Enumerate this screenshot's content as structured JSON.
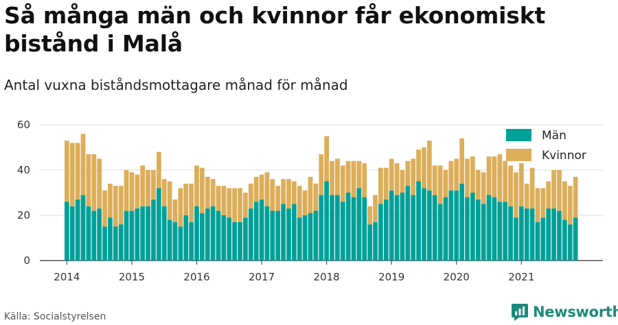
{
  "title": "Så många män och kvinnor får ekonomiskt bistånd i Malå",
  "subtitle": "Antal vuxna biståndsmottagare månad för månad",
  "source": "Källa: Socialstyrelsen",
  "brand": {
    "name": "Newsworthy",
    "icon": "newsworthy-logo-icon"
  },
  "colors": {
    "men": "#00a098",
    "women": "#dcae5a",
    "grid": "#dddddd",
    "axis": "#333333"
  },
  "chart_data": {
    "type": "bar",
    "stacked": true,
    "grid": true,
    "legend_position": "top-right",
    "ylim": [
      0,
      60
    ],
    "yticks": [
      0,
      20,
      40,
      60
    ],
    "xticks": [
      "2014",
      "2015",
      "2016",
      "2017",
      "2018",
      "2019",
      "2020",
      "2021"
    ],
    "x_start": "2014-01",
    "series": [
      {
        "name": "Män",
        "values": [
          26,
          24,
          27,
          29,
          24,
          22,
          23,
          15,
          19,
          15,
          16,
          22,
          22,
          23,
          24,
          24,
          27,
          32,
          24,
          18,
          17,
          15,
          20,
          17,
          24,
          21,
          23,
          24,
          22,
          20,
          19,
          17,
          17,
          19,
          23,
          26,
          27,
          24,
          22,
          22,
          25,
          23,
          25,
          19,
          20,
          21,
          22,
          29,
          35,
          29,
          29,
          26,
          30,
          28,
          32,
          28,
          16,
          17,
          25,
          27,
          31,
          29,
          30,
          33,
          29,
          35,
          32,
          31,
          29,
          25,
          28,
          31,
          31,
          34,
          28,
          30,
          27,
          25,
          29,
          28,
          26,
          26,
          24,
          19,
          24,
          23,
          23,
          17,
          19,
          23,
          23,
          22,
          18,
          16,
          19
        ]
      },
      {
        "name": "Kvinnor",
        "values": [
          27,
          28,
          25,
          27,
          23,
          25,
          22,
          16,
          15,
          18,
          17,
          18,
          17,
          15,
          18,
          16,
          13,
          16,
          12,
          17,
          10,
          17,
          14,
          17,
          18,
          20,
          14,
          12,
          11,
          13,
          13,
          15,
          15,
          11,
          11,
          11,
          11,
          15,
          14,
          11,
          11,
          13,
          10,
          14,
          11,
          16,
          12,
          18,
          20,
          15,
          16,
          16,
          14,
          16,
          12,
          15,
          8,
          12,
          16,
          14,
          14,
          14,
          10,
          11,
          16,
          14,
          18,
          22,
          13,
          17,
          12,
          13,
          14,
          20,
          17,
          16,
          13,
          14,
          17,
          18,
          21,
          18,
          18,
          20,
          19,
          11,
          18,
          15,
          13,
          12,
          17,
          18,
          17,
          17,
          18
        ]
      }
    ]
  }
}
